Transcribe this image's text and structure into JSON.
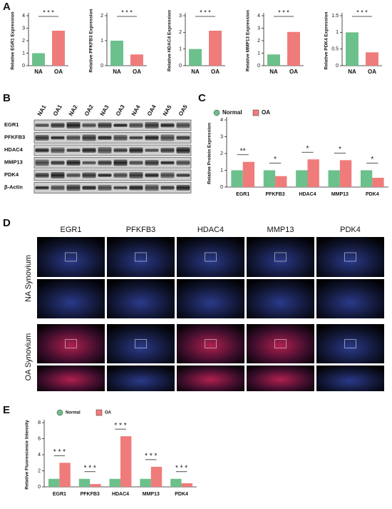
{
  "panels": [
    "A",
    "B",
    "C",
    "D",
    "E"
  ],
  "chart_data": [
    {
      "type": "bar",
      "y_label": "Relative EGR1 Expression",
      "categories": [
        "NA",
        "OA"
      ],
      "values": [
        1.0,
        2.8
      ],
      "colors": [
        "#6cc08b",
        "#f07b7b"
      ],
      "ylim": [
        0,
        4
      ],
      "yticks": [
        0,
        1,
        2,
        3,
        4
      ],
      "significance": "* * *"
    },
    {
      "type": "bar",
      "y_label": "Relative PFKFB3 Expression",
      "categories": [
        "NA",
        "OA"
      ],
      "values": [
        1.0,
        0.45
      ],
      "colors": [
        "#6cc08b",
        "#f07b7b"
      ],
      "ylim": [
        0,
        2
      ],
      "yticks": [
        0,
        1,
        2
      ],
      "significance": "* * *"
    },
    {
      "type": "bar",
      "y_label": "Relative HDAC4 Expression",
      "categories": [
        "NA",
        "OA"
      ],
      "values": [
        1.0,
        2.1
      ],
      "colors": [
        "#6cc08b",
        "#f07b7b"
      ],
      "ylim": [
        0,
        3
      ],
      "yticks": [
        0,
        1,
        2,
        3
      ],
      "significance": "* * *"
    },
    {
      "type": "bar",
      "y_label": "Relative MMP13 Expression",
      "categories": [
        "NA",
        "OA"
      ],
      "values": [
        0.9,
        2.7
      ],
      "colors": [
        "#6cc08b",
        "#f07b7b"
      ],
      "ylim": [
        0,
        4
      ],
      "yticks": [
        0,
        1,
        2,
        3,
        4
      ],
      "significance": "* * *"
    },
    {
      "type": "bar",
      "y_label": "Relative PDK4 Expression",
      "categories": [
        "NA",
        "OA"
      ],
      "values": [
        1.0,
        0.4
      ],
      "colors": [
        "#6cc08b",
        "#f07b7b"
      ],
      "ylim": [
        0,
        1.5
      ],
      "yticks": [
        0,
        0.5,
        1,
        1.5
      ],
      "significance": "* * *"
    },
    {
      "type": "grouped-bar",
      "y_label": "Relative Protein Expression",
      "categories": [
        "EGR1",
        "PFKFB3",
        "HDAC4",
        "MMP13",
        "PDK4"
      ],
      "series": [
        {
          "name": "Normal",
          "color": "#6cc08b",
          "values": [
            1.0,
            1.0,
            1.0,
            1.0,
            1.0
          ]
        },
        {
          "name": "OA",
          "color": "#f07b7b",
          "values": [
            1.5,
            0.65,
            1.65,
            1.6,
            0.55
          ]
        }
      ],
      "ylim": [
        0,
        4
      ],
      "yticks": [
        0,
        1,
        2,
        3,
        4
      ],
      "significance": [
        "**",
        "*",
        "*",
        "*",
        "*"
      ]
    },
    {
      "type": "grouped-bar",
      "y_label": "Relative Fluorescence Intensity",
      "categories": [
        "EGR1",
        "PFKFB3",
        "HDAC4",
        "MMP13",
        "PDK4"
      ],
      "series": [
        {
          "name": "Normal",
          "color": "#6cc08b",
          "values": [
            1.0,
            1.0,
            1.0,
            1.0,
            1.0
          ]
        },
        {
          "name": "OA",
          "color": "#f07b7b",
          "values": [
            3.0,
            0.35,
            6.3,
            2.5,
            0.45
          ]
        }
      ],
      "ylim": [
        0,
        8
      ],
      "yticks": [
        0,
        2,
        4,
        6,
        8
      ],
      "significance": [
        "* * *",
        "* * *",
        "* * *",
        "* * *",
        "* * *"
      ]
    }
  ],
  "blot": {
    "lanes": [
      "NA1",
      "OA1",
      "NA2",
      "OA2",
      "NA3",
      "OA3",
      "NA4",
      "OA4",
      "NA5",
      "OA5"
    ],
    "rows": [
      "EGR1",
      "PFKFB3",
      "HDAC4",
      "MMP13",
      "PDK4",
      "β-Actin"
    ]
  },
  "microscopy": {
    "columns": [
      {
        "label": "EGR1",
        "color": "#d4343f"
      },
      {
        "label": "PFKFB3",
        "color": "#2e9a4e"
      },
      {
        "label": "HDAC4",
        "color": "#d4343f"
      },
      {
        "label": "MMP13",
        "color": "#d4343f"
      },
      {
        "label": "PDK4",
        "color": "#2e9a4e"
      }
    ],
    "rows": [
      "NA Synovium",
      "OA Synovium"
    ]
  }
}
